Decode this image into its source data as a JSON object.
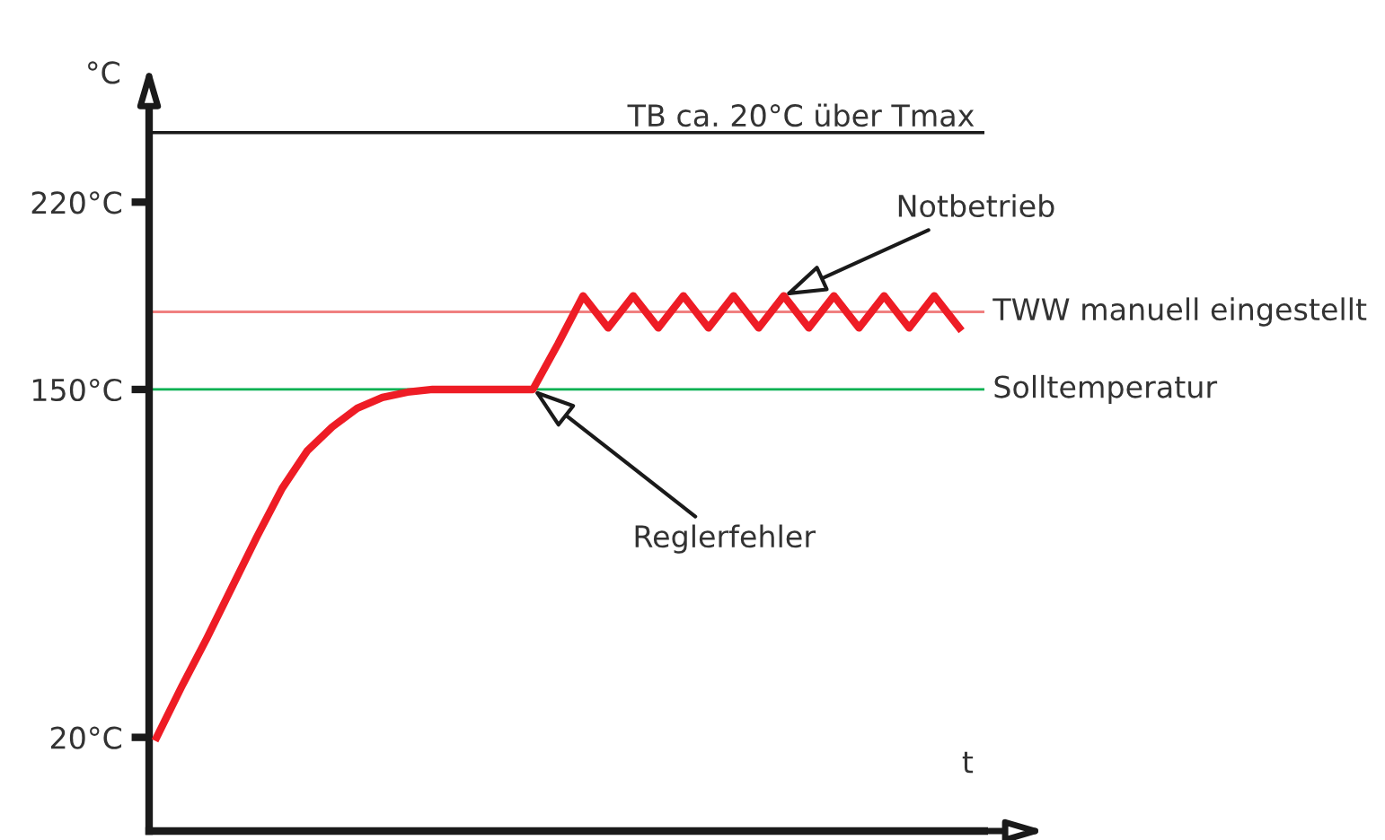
{
  "chart_data": {
    "type": "line",
    "xlabel": "t",
    "ylabel": "°C",
    "categories": [
      null,
      null,
      null,
      null,
      null,
      null,
      null,
      null,
      null,
      null,
      null,
      null,
      null,
      null,
      null,
      null,
      null,
      null,
      null,
      null,
      null,
      null,
      null,
      null,
      null,
      null,
      null,
      null,
      null,
      null,
      null,
      null,
      null
    ],
    "series": [
      {
        "color": "#ee1c25",
        "values": [
          20,
          39,
          57,
          76,
          95,
          113,
          127,
          136,
          143,
          147,
          149,
          150,
          150,
          150,
          150,
          150,
          167,
          185,
          173,
          185,
          173,
          185,
          173,
          185,
          173,
          185,
          173,
          185,
          173,
          185,
          173,
          185,
          173
        ]
      }
    ],
    "ylim": [
      -15,
      262
    ],
    "yticks": [
      {
        "value": 20,
        "label": "20°C"
      },
      {
        "value": 150,
        "label": "150°C"
      },
      {
        "value": 220,
        "label": "220°C"
      }
    ],
    "tick_labels": "y",
    "grid": false,
    "marker": "none",
    "line_style": "solid",
    "ref_lines": [
      {
        "axis": "y",
        "value": 246,
        "label": "TB ca. 20°C über Tmax",
        "color": "#1a1a1a"
      },
      {
        "axis": "y",
        "value": 179,
        "label": "TWW manuell eingestellt",
        "color": "#f08080"
      },
      {
        "axis": "y",
        "value": 150,
        "label": "Solltemperatur",
        "color": "#00b050"
      }
    ],
    "annotations": [
      "Notbetrieb",
      "Reglerfehler"
    ]
  }
}
